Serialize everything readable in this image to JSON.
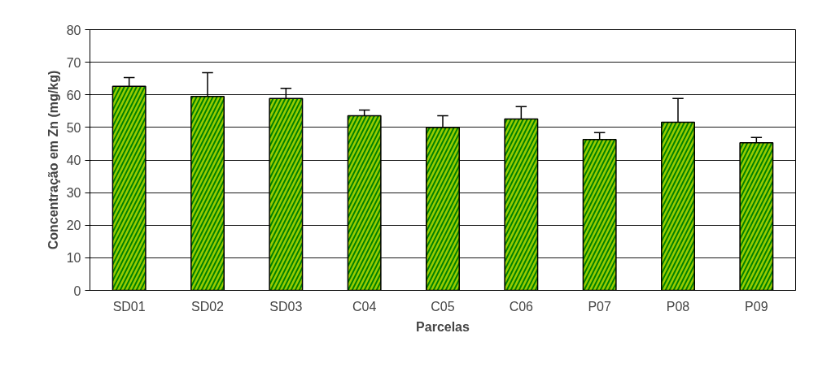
{
  "chart_data": {
    "type": "bar",
    "xlabel": "Parcelas",
    "ylabel": "Concentração em Zn (mg/kg)",
    "categories": [
      "SD01",
      "SD02",
      "SD03",
      "C04",
      "C05",
      "C06",
      "P07",
      "P08",
      "P09"
    ],
    "values": [
      62.6,
      59.5,
      58.9,
      53.6,
      50.0,
      52.6,
      46.3,
      51.6,
      45.3
    ],
    "errors": [
      [
        62.6,
        65.3
      ],
      [
        59.5,
        66.8
      ],
      [
        58.9,
        62.0
      ],
      [
        53.6,
        55.3
      ],
      [
        50.0,
        53.6
      ],
      [
        52.6,
        56.4
      ],
      [
        46.3,
        48.4
      ],
      [
        51.6,
        58.9
      ],
      [
        45.3,
        46.9
      ]
    ],
    "color": "#008000",
    "ylim": [
      0,
      80
    ],
    "yticks": [
      0,
      10,
      20,
      30,
      40,
      50,
      60,
      70,
      80
    ],
    "grid": "y"
  }
}
